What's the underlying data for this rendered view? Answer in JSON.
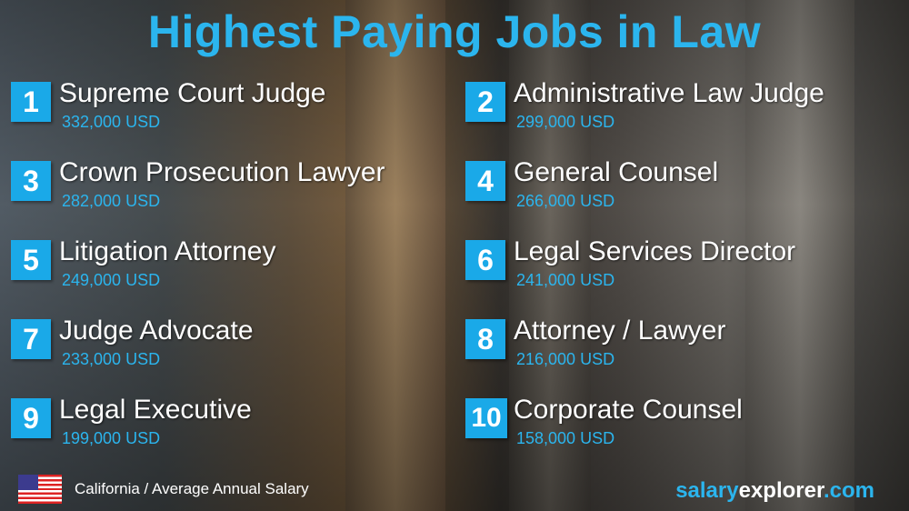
{
  "title": "Highest Paying Jobs in Law",
  "colors": {
    "accent": "#1aa9e8",
    "title": "#2bb5ee"
  },
  "jobs": [
    {
      "rank": "1",
      "name": "Supreme Court Judge",
      "salary": "332,000 USD"
    },
    {
      "rank": "2",
      "name": "Administrative Law Judge",
      "salary": "299,000 USD"
    },
    {
      "rank": "3",
      "name": "Crown Prosecution Lawyer",
      "salary": "282,000 USD"
    },
    {
      "rank": "4",
      "name": "General Counsel",
      "salary": "266,000 USD"
    },
    {
      "rank": "5",
      "name": "Litigation Attorney",
      "salary": "249,000 USD"
    },
    {
      "rank": "6",
      "name": "Legal Services Director",
      "salary": "241,000 USD"
    },
    {
      "rank": "7",
      "name": "Judge Advocate",
      "salary": "233,000 USD"
    },
    {
      "rank": "8",
      "name": "Attorney / Lawyer",
      "salary": "216,000 USD"
    },
    {
      "rank": "9",
      "name": "Legal Executive",
      "salary": "199,000 USD"
    },
    {
      "rank": "10",
      "name": "Corporate Counsel",
      "salary": "158,000 USD"
    }
  ],
  "footer": {
    "flag_icon": "us-flag-icon",
    "location": "California / Average Annual Salary",
    "brand_part1": "salary",
    "brand_part2": "explorer",
    "brand_part3": ".com"
  }
}
